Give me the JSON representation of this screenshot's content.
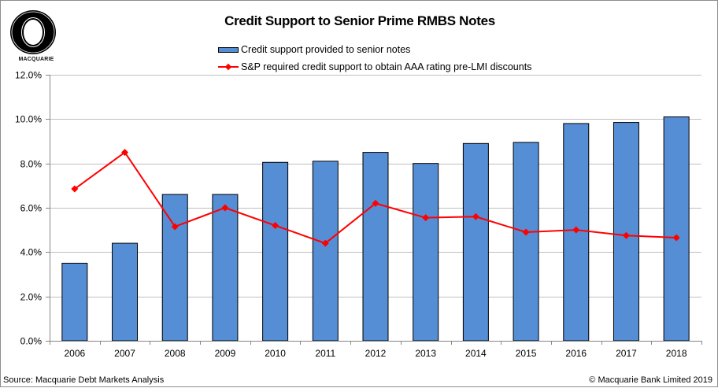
{
  "header": {
    "title": "Credit Support to Senior Prime RMBS Notes",
    "logo_text": "MACQUARIE"
  },
  "legend": {
    "bar_label": "Credit support provided to senior notes",
    "line_label": "S&P required credit support to obtain AAA rating pre-LMI discounts"
  },
  "footer": {
    "source": "Source: Macquarie Debt Markets Analysis",
    "copyright": "© Macquarie Bank Limited 2019"
  },
  "colors": {
    "bar": "#558ed5",
    "bar_border": "#000000",
    "line": "#ff0000",
    "grid": "#bfbfbf",
    "axis": "#868686"
  },
  "chart_data": {
    "type": "bar",
    "title": "Credit Support to Senior Prime RMBS Notes",
    "xlabel": "",
    "ylabel": "",
    "ylim": [
      0,
      12
    ],
    "yticks": [
      "0.0%",
      "2.0%",
      "4.0%",
      "6.0%",
      "8.0%",
      "10.0%",
      "12.0%"
    ],
    "grid": true,
    "legend_position": "top",
    "categories": [
      "2006",
      "2007",
      "2008",
      "2009",
      "2010",
      "2011",
      "2012",
      "2013",
      "2014",
      "2015",
      "2016",
      "2017",
      "2018"
    ],
    "series": [
      {
        "name": "Credit support provided to senior notes",
        "type": "bar",
        "values": [
          3.5,
          4.4,
          6.6,
          6.6,
          8.05,
          8.1,
          8.5,
          8.0,
          8.9,
          8.95,
          9.8,
          9.85,
          10.1
        ]
      },
      {
        "name": "S&P required credit support to obtain AAA rating pre-LMI discounts",
        "type": "line",
        "marker": "diamond",
        "values": [
          6.85,
          8.5,
          5.15,
          6.0,
          5.2,
          4.4,
          6.2,
          5.55,
          5.6,
          4.9,
          5.0,
          4.75,
          4.65
        ]
      }
    ]
  }
}
